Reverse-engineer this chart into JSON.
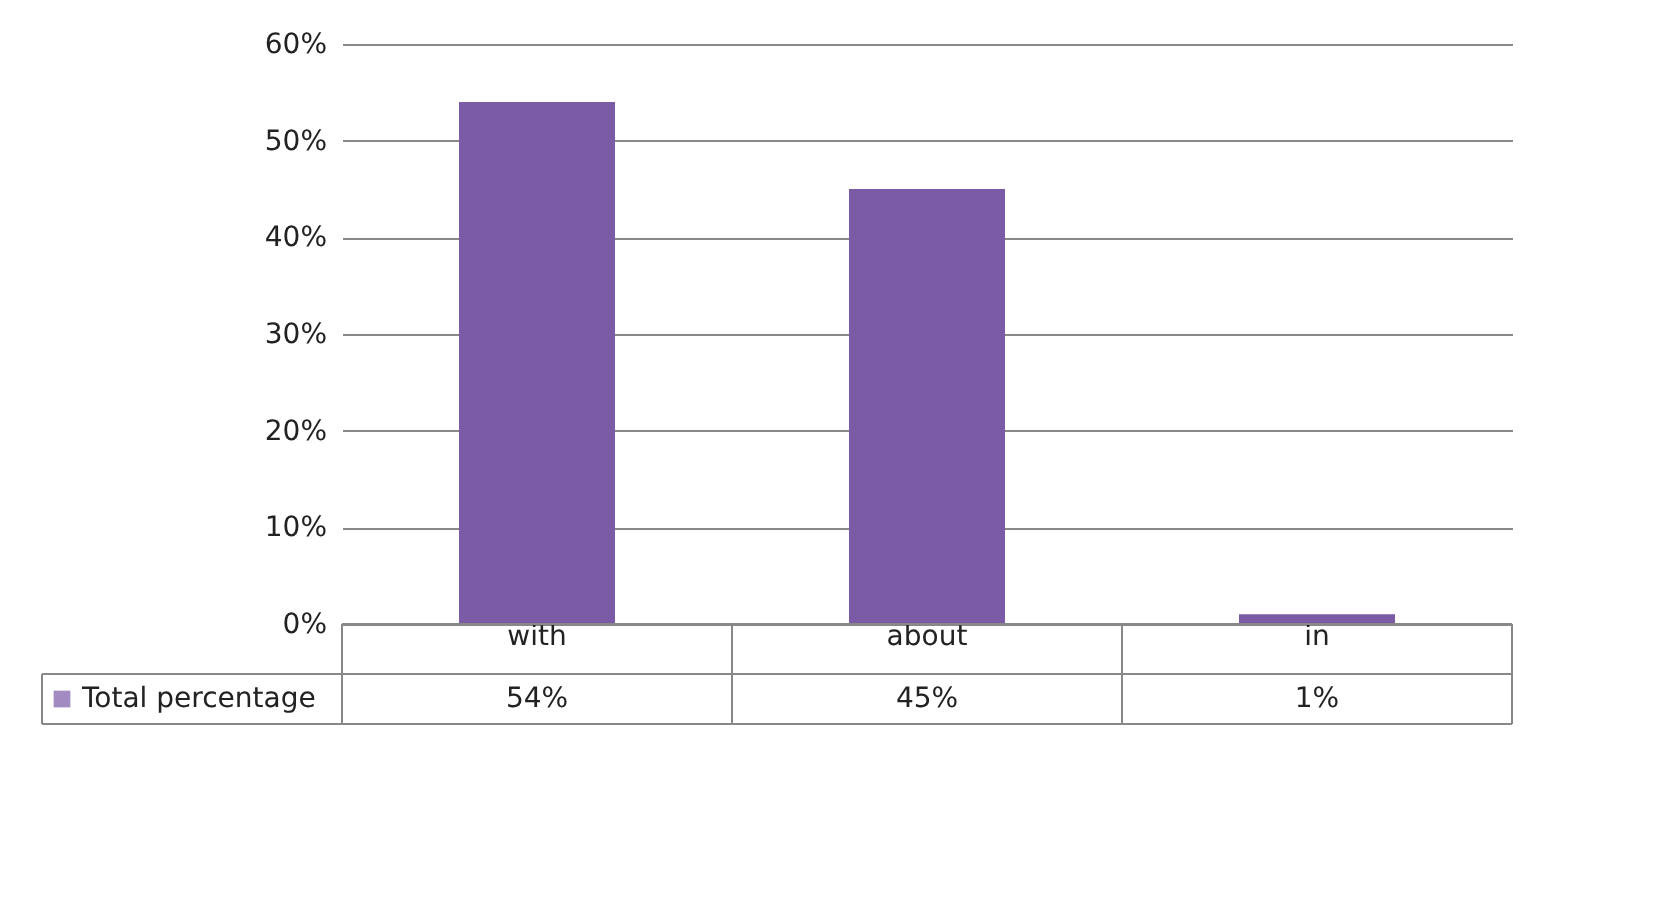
{
  "chart_data": {
    "type": "bar",
    "categories": [
      "with",
      "about",
      "in"
    ],
    "series": [
      {
        "name": "Total percentage",
        "color": "#7b5aa6",
        "values": [
          54,
          45,
          1
        ],
        "value_labels": [
          "54%",
          "45%",
          "1%"
        ]
      }
    ],
    "ylim": [
      0,
      60
    ],
    "yticks": [
      {
        "value": 0,
        "label": "0%"
      },
      {
        "value": 10,
        "label": "10%"
      },
      {
        "value": 20,
        "label": "20%"
      },
      {
        "value": 30,
        "label": "30%"
      },
      {
        "value": 40,
        "label": "40%"
      },
      {
        "value": 50,
        "label": "50%"
      },
      {
        "value": 60,
        "label": "60%"
      }
    ],
    "grid": "y",
    "legend": "bottom left"
  }
}
